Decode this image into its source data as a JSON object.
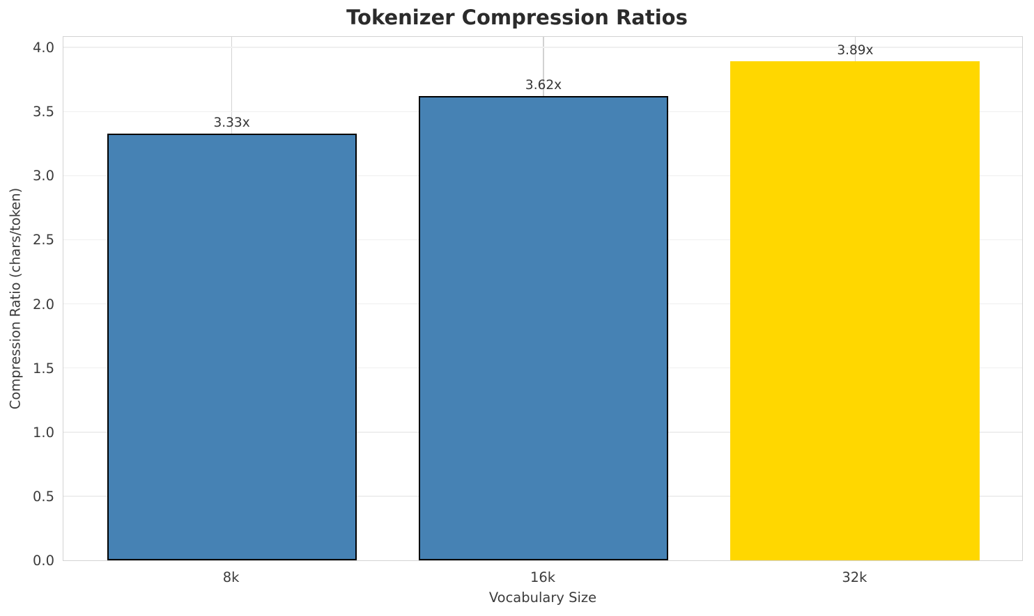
{
  "chart_data": {
    "type": "bar",
    "title": "Tokenizer Compression Ratios",
    "xlabel": "Vocabulary Size",
    "ylabel": "Compression Ratio (chars/token)",
    "categories": [
      "8k",
      "16k",
      "32k"
    ],
    "values": [
      3.33,
      3.62,
      3.89
    ],
    "value_labels": [
      "3.33x",
      "3.62x",
      "3.89x"
    ],
    "series": [
      {
        "name": "Compression Ratio",
        "values": [
          3.33,
          3.62,
          3.89
        ]
      }
    ],
    "bar_colors": [
      "#4682b4",
      "#4682b4",
      "#ffd700"
    ],
    "bar_edge_colors": [
      "#000000",
      "#000000",
      null
    ],
    "highlight_category": "32k",
    "ylim": [
      0,
      4.09
    ],
    "yticks": [
      "0.0",
      "0.5",
      "1.0",
      "1.5",
      "2.0",
      "2.5",
      "3.0",
      "3.5",
      "4.0"
    ],
    "xlim": [
      -0.54,
      2.54
    ],
    "bar_width_fraction": 0.8,
    "grid": true,
    "legend_position": "none",
    "style": {
      "background": "#ffffff",
      "grid_horizontal_color": "#efefef",
      "grid_vertical_color": "#d2d2d2",
      "spine_color": "#d2d2d2",
      "tick_text_color": "#3b3b3b",
      "value_label_color": "#363636",
      "title_color": "#2b2b2b",
      "bar_blue": "#4682b4",
      "bar_gold": "#ffd700"
    }
  }
}
